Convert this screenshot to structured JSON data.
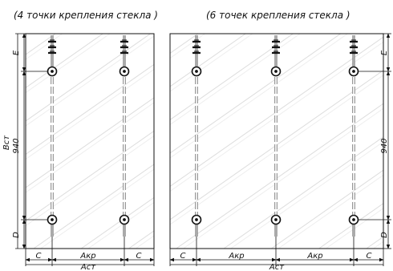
{
  "left_panel": {
    "title": "(4  точки крепления стекла )",
    "dims": {
      "e": "E",
      "d": "D",
      "b": "Вст",
      "height": "940",
      "c": "С",
      "a_kr": "Акр",
      "a_st": "Аст"
    }
  },
  "right_panel": {
    "title": "(6  точек крепления стекла )",
    "dims": {
      "e": "E",
      "d": "D",
      "height": "940",
      "c": "С",
      "a_kr": "Акр",
      "a_st": "Аст"
    }
  }
}
